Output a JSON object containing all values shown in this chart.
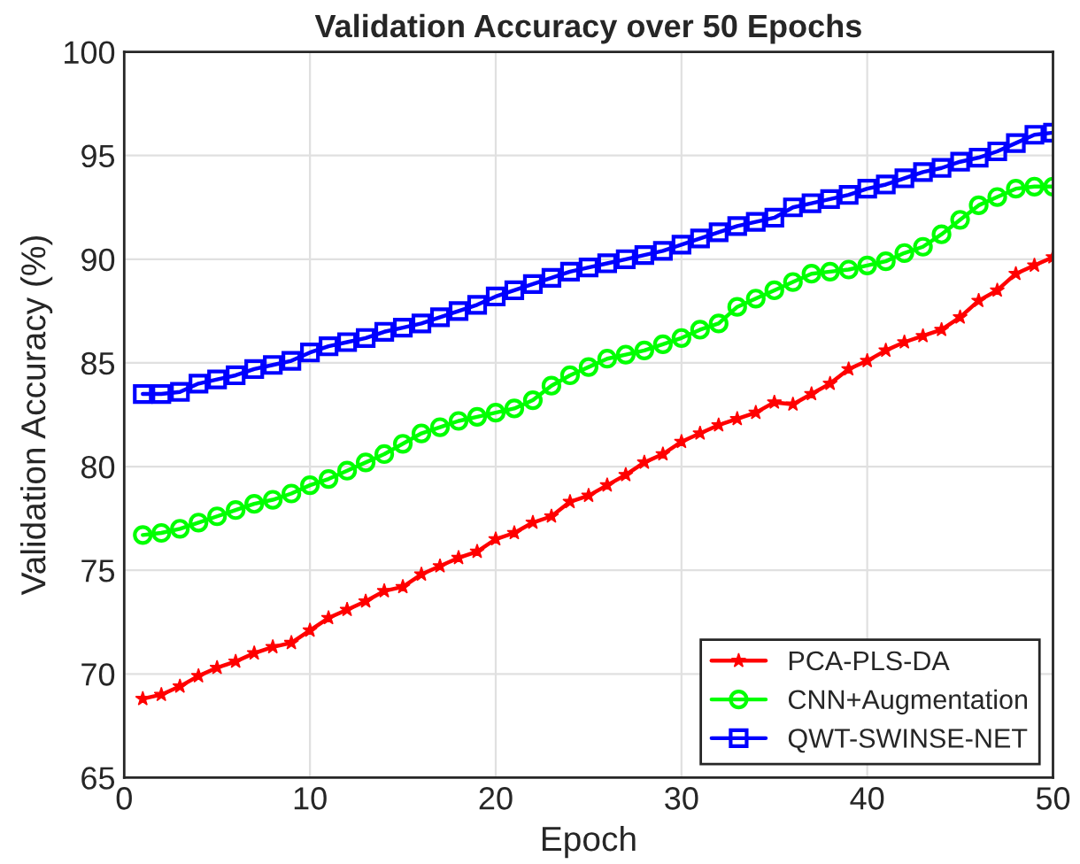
{
  "chart_data": {
    "type": "line",
    "title": "Validation Accuracy over 50 Epochs",
    "xlabel": "Epoch",
    "ylabel": "Validation Accuracy (%)",
    "x": [
      1,
      2,
      3,
      4,
      5,
      6,
      7,
      8,
      9,
      10,
      11,
      12,
      13,
      14,
      15,
      16,
      17,
      18,
      19,
      20,
      21,
      22,
      23,
      24,
      25,
      26,
      27,
      28,
      29,
      30,
      31,
      32,
      33,
      34,
      35,
      36,
      37,
      38,
      39,
      40,
      41,
      42,
      43,
      44,
      45,
      46,
      47,
      48,
      49,
      50
    ],
    "series": [
      {
        "name": "PCA-PLS-DA",
        "color": "#ff0000",
        "marker": "star",
        "values": [
          68.8,
          69.0,
          69.4,
          69.9,
          70.3,
          70.6,
          71.0,
          71.3,
          71.5,
          72.1,
          72.7,
          73.1,
          73.5,
          74.0,
          74.2,
          74.8,
          75.2,
          75.6,
          75.9,
          76.5,
          76.8,
          77.3,
          77.6,
          78.3,
          78.6,
          79.1,
          79.6,
          80.2,
          80.6,
          81.2,
          81.6,
          82.0,
          82.3,
          82.6,
          83.1,
          83.0,
          83.5,
          84.0,
          84.7,
          85.1,
          85.6,
          86.0,
          86.3,
          86.6,
          87.2,
          88.0,
          88.5,
          89.3,
          89.7,
          90.1
        ]
      },
      {
        "name": "CNN+Augmentation",
        "color": "#00ff00",
        "marker": "circle",
        "values": [
          76.7,
          76.8,
          77.0,
          77.3,
          77.6,
          77.9,
          78.2,
          78.4,
          78.7,
          79.1,
          79.4,
          79.8,
          80.2,
          80.6,
          81.1,
          81.6,
          81.9,
          82.2,
          82.4,
          82.6,
          82.8,
          83.2,
          83.9,
          84.4,
          84.8,
          85.2,
          85.4,
          85.6,
          85.9,
          86.2,
          86.6,
          86.9,
          87.7,
          88.1,
          88.5,
          88.9,
          89.3,
          89.4,
          89.5,
          89.7,
          89.9,
          90.3,
          90.6,
          91.2,
          91.9,
          92.6,
          93.0,
          93.4,
          93.5,
          93.5
        ]
      },
      {
        "name": "QWT-SWINSE-NET",
        "color": "#0000ff",
        "marker": "square",
        "values": [
          83.5,
          83.5,
          83.6,
          84.0,
          84.2,
          84.4,
          84.7,
          84.9,
          85.1,
          85.5,
          85.8,
          86.0,
          86.2,
          86.5,
          86.7,
          86.9,
          87.2,
          87.5,
          87.8,
          88.2,
          88.5,
          88.8,
          89.1,
          89.4,
          89.6,
          89.8,
          90.0,
          90.2,
          90.4,
          90.7,
          91.0,
          91.3,
          91.6,
          91.8,
          92.0,
          92.5,
          92.7,
          92.9,
          93.1,
          93.4,
          93.6,
          93.9,
          94.2,
          94.4,
          94.7,
          94.9,
          95.2,
          95.6,
          96.0,
          96.1
        ]
      }
    ],
    "xlim": [
      0,
      50
    ],
    "xticks": [
      0,
      10,
      20,
      30,
      40,
      50
    ],
    "ylim": [
      65,
      100
    ],
    "yticks": [
      65,
      70,
      75,
      80,
      85,
      90,
      95,
      100
    ],
    "grid": true,
    "legend": "bottom right",
    "line_style": "solid"
  }
}
